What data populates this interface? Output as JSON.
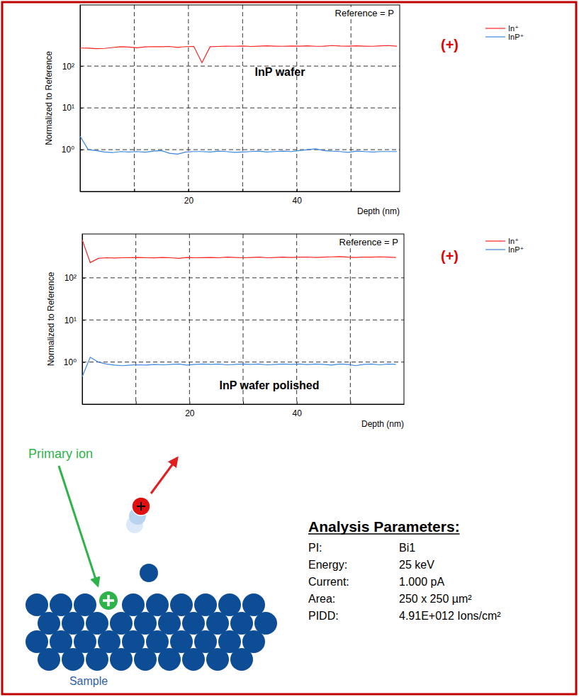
{
  "chart_data": [
    {
      "type": "line",
      "title": "InP wafer",
      "annotations": [
        "Reference = P",
        "(+)"
      ],
      "xlabel": "Depth (nm)",
      "ylabel": "Normalized to Reference",
      "x": [
        0,
        1.5,
        3,
        4.5,
        6,
        7.5,
        9,
        10.5,
        12,
        13.5,
        15,
        16.5,
        18,
        19.5,
        21,
        22.5,
        24,
        25.5,
        27,
        28.5,
        30,
        31.5,
        33,
        34.5,
        36,
        37.5,
        39,
        40.5,
        42,
        43.5,
        45,
        46.5,
        48,
        49.5,
        51,
        52.5,
        54,
        55.5,
        57,
        58.5
      ],
      "series": [
        {
          "name": "In⁺",
          "color": "#ff2020",
          "values": [
            270,
            268,
            262,
            265,
            278,
            290,
            285,
            275,
            288,
            292,
            290,
            295,
            280,
            292,
            295,
            120,
            290,
            295,
            300,
            298,
            302,
            295,
            300,
            305,
            300,
            298,
            302,
            300,
            305,
            298,
            300,
            310,
            302,
            300,
            305,
            300,
            298,
            305,
            310,
            300
          ]
        },
        {
          "name": "InP⁺",
          "color": "#3a86e0",
          "values": [
            2.1,
            1.0,
            0.95,
            0.88,
            0.85,
            0.9,
            0.88,
            0.9,
            0.87,
            0.92,
            0.95,
            0.82,
            0.78,
            0.88,
            0.9,
            0.9,
            0.88,
            0.92,
            0.9,
            0.86,
            0.88,
            0.9,
            0.92,
            0.88,
            0.9,
            0.92,
            0.9,
            0.95,
            1.0,
            1.05,
            0.95,
            0.92,
            0.9,
            0.86,
            0.92,
            0.9,
            0.88,
            0.9,
            0.9,
            0.9
          ]
        }
      ],
      "xlim": [
        0,
        59
      ],
      "xticks": [
        {
          "value": 10,
          "label": null
        },
        20,
        {
          "value": 30,
          "label": null
        },
        40,
        {
          "value": 50,
          "label": null
        }
      ],
      "ylim": [
        0.1,
        2900
      ],
      "yticks": [
        {
          "value": 1,
          "label": "10⁰"
        },
        {
          "value": 10,
          "label": "10¹"
        },
        {
          "value": 100,
          "label": "10²"
        }
      ],
      "log": "y",
      "grid": true,
      "legend": "right"
    },
    {
      "type": "line",
      "title": "InP wafer polished",
      "annotations": [
        "Reference = P",
        "(+)"
      ],
      "xlabel": "Depth (nm)",
      "ylabel": "Normalized to Reference",
      "x": [
        0,
        1.5,
        3,
        4.5,
        6,
        7.5,
        9,
        10.5,
        12,
        13.5,
        15,
        16.5,
        18,
        19.5,
        21,
        22.5,
        24,
        25.5,
        27,
        28.5,
        30,
        31.5,
        33,
        34.5,
        36,
        37.5,
        39,
        40.5,
        42,
        43.5,
        45,
        46.5,
        48,
        49.5,
        51,
        52.5,
        54,
        55.5,
        57,
        58.5
      ],
      "series": [
        {
          "name": "In⁺",
          "color": "#ff2020",
          "values": [
            800,
            230,
            290,
            300,
            295,
            300,
            302,
            305,
            300,
            298,
            305,
            300,
            290,
            305,
            300,
            302,
            305,
            300,
            310,
            305,
            300,
            305,
            310,
            300,
            305,
            310,
            305,
            310,
            312,
            305,
            310,
            315,
            320,
            310,
            305,
            312,
            310,
            315,
            310,
            305
          ]
        },
        {
          "name": "InP⁺",
          "color": "#3a86e0",
          "values": [
            0.45,
            1.3,
            1.0,
            0.9,
            0.85,
            0.82,
            0.85,
            0.86,
            0.85,
            0.88,
            0.86,
            0.88,
            0.9,
            0.85,
            0.88,
            0.9,
            0.88,
            0.9,
            0.86,
            0.88,
            0.9,
            0.88,
            0.9,
            0.86,
            0.88,
            0.9,
            0.88,
            0.9,
            0.87,
            0.9,
            0.88,
            0.85,
            0.9,
            0.88,
            0.82,
            0.88,
            0.9,
            0.86,
            0.9,
            0.88
          ]
        }
      ],
      "xlim": [
        0,
        60
      ],
      "xticks": [
        {
          "value": 10,
          "label": null
        },
        20,
        {
          "value": 30,
          "label": null
        },
        40,
        {
          "value": 50,
          "label": null
        }
      ],
      "ylim": [
        0.1,
        1100
      ],
      "yticks": [
        {
          "value": 1,
          "label": "10⁰"
        },
        {
          "value": 10,
          "label": "10¹"
        },
        {
          "value": 100,
          "label": "10²"
        }
      ],
      "log": "y",
      "grid": true,
      "legend": "right"
    }
  ],
  "diagram": {
    "primary_ion_label": "Primary ion",
    "sample_label": "Sample"
  },
  "analysis_parameters": {
    "title": "Analysis Parameters:",
    "rows": [
      {
        "label": "PI:",
        "value": "Bi1"
      },
      {
        "label": "Energy:",
        "value": "25 keV"
      },
      {
        "label": "Current:",
        "value": "1.000 pA"
      },
      {
        "label": "Area:",
        "value": "250 x 250 µm²"
      },
      {
        "label": "PIDD:",
        "value": "4.91E+012 Ions/cm²"
      }
    ]
  }
}
